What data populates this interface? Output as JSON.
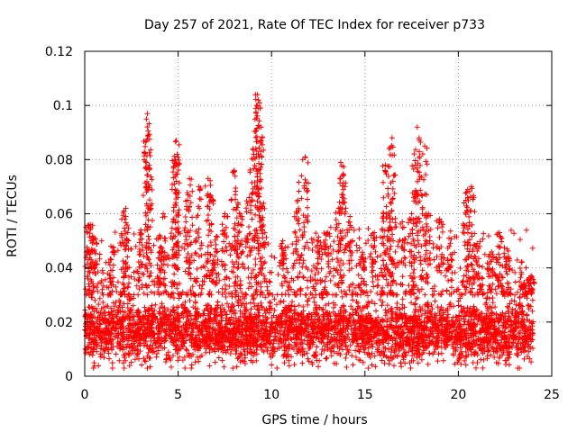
{
  "chart_data": {
    "type": "scatter",
    "title": "Day 257 of 2021, Rate Of TEC Index for receiver p733",
    "xlabel": "GPS time / hours",
    "ylabel": "ROTI / TECUs",
    "xlim": [
      0,
      25
    ],
    "ylim": [
      0,
      0.12
    ],
    "xticks": [
      0,
      5,
      10,
      15,
      20,
      25
    ],
    "xtick_labels": [
      "0",
      "5",
      "10",
      "15",
      "20",
      "25"
    ],
    "yticks": [
      0,
      0.02,
      0.04,
      0.06,
      0.08,
      0.1,
      0.12
    ],
    "ytick_labels": [
      "0",
      "0.02",
      "0.04",
      "0.06",
      "0.08",
      "0.1",
      "0.12"
    ],
    "grid": true,
    "marker": "plus",
    "marker_color": "#ff0000",
    "x_data_range": [
      0,
      24
    ],
    "dense_band_y_range": [
      0.003,
      0.03
    ],
    "series": [
      {
        "values_xy": [
          [
            0.2,
            0.055
          ],
          [
            0.3,
            0.056
          ],
          [
            0.5,
            0.051
          ],
          [
            1.4,
            0.048
          ],
          [
            2.1,
            0.061
          ],
          [
            2.2,
            0.062
          ],
          [
            3.0,
            0.054
          ],
          [
            3.3,
            0.095
          ],
          [
            3.35,
            0.097
          ],
          [
            3.4,
            0.089
          ],
          [
            3.45,
            0.078
          ],
          [
            4.0,
            0.052
          ],
          [
            4.2,
            0.06
          ],
          [
            4.8,
            0.071
          ],
          [
            4.85,
            0.08
          ],
          [
            4.9,
            0.087
          ],
          [
            4.95,
            0.082
          ],
          [
            5.5,
            0.065
          ],
          [
            5.6,
            0.073
          ],
          [
            6.1,
            0.07
          ],
          [
            6.6,
            0.073
          ],
          [
            6.7,
            0.066
          ],
          [
            7.0,
            0.047
          ],
          [
            7.5,
            0.06
          ],
          [
            8.0,
            0.076
          ],
          [
            8.2,
            0.064
          ],
          [
            8.3,
            0.06
          ],
          [
            8.8,
            0.066
          ],
          [
            9.0,
            0.084
          ],
          [
            9.2,
            0.1
          ],
          [
            9.25,
            0.104
          ],
          [
            9.3,
            0.102
          ],
          [
            9.35,
            0.092
          ],
          [
            9.4,
            0.087
          ],
          [
            9.5,
            0.062
          ],
          [
            10.6,
            0.05
          ],
          [
            11.4,
            0.065
          ],
          [
            11.6,
            0.074
          ],
          [
            11.8,
            0.081
          ],
          [
            12.5,
            0.05
          ],
          [
            13.0,
            0.053
          ],
          [
            13.6,
            0.062
          ],
          [
            13.7,
            0.079
          ],
          [
            13.8,
            0.074
          ],
          [
            14.2,
            0.059
          ],
          [
            14.8,
            0.044
          ],
          [
            15.5,
            0.053
          ],
          [
            16.0,
            0.06
          ],
          [
            16.1,
            0.078
          ],
          [
            16.3,
            0.084
          ],
          [
            16.45,
            0.088
          ],
          [
            16.5,
            0.072
          ],
          [
            17.0,
            0.057
          ],
          [
            17.5,
            0.06
          ],
          [
            17.7,
            0.078
          ],
          [
            17.8,
            0.092
          ],
          [
            17.9,
            0.088
          ],
          [
            18.2,
            0.085
          ],
          [
            18.4,
            0.06
          ],
          [
            19.0,
            0.058
          ],
          [
            19.5,
            0.051
          ],
          [
            20.4,
            0.065
          ],
          [
            20.5,
            0.069
          ],
          [
            20.7,
            0.07
          ],
          [
            21.0,
            0.049
          ],
          [
            21.7,
            0.045
          ],
          [
            22.2,
            0.053
          ],
          [
            22.6,
            0.047
          ],
          [
            23.5,
            0.034
          ],
          [
            23.9,
            0.037
          ]
        ]
      }
    ]
  }
}
